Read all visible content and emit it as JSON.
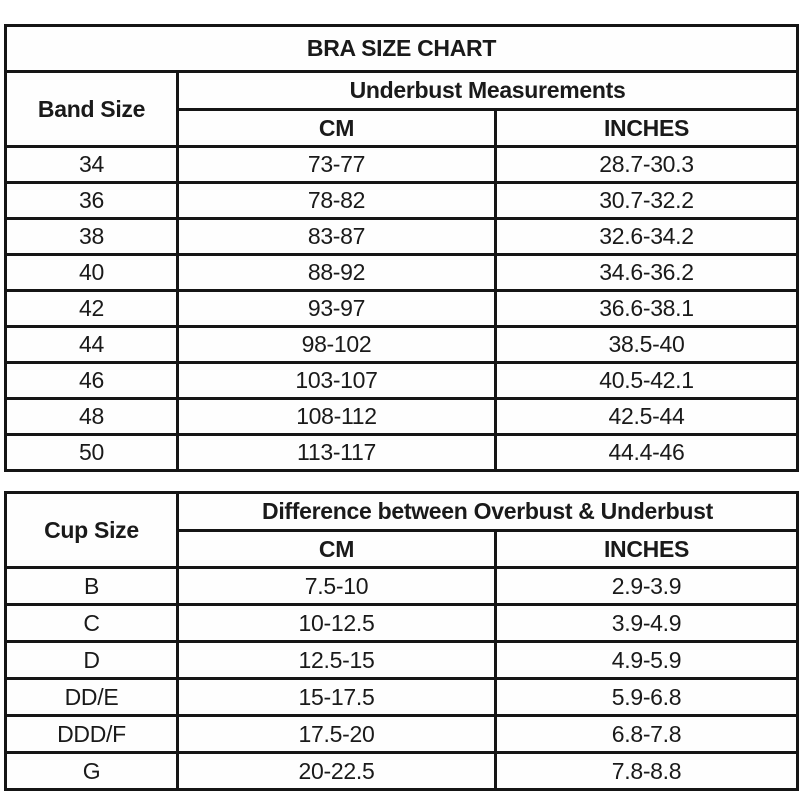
{
  "colors": {
    "header_background": "#FAF7D8",
    "cell_background": "#FFFFFF",
    "border": "#151515",
    "text": "#1A1A1A"
  },
  "chart_data": [
    {
      "type": "table",
      "title": "BRA SIZE CHART",
      "corner_header": "Band Size",
      "group_header": "Underbust Measurements",
      "columns": [
        "CM",
        "INCHES"
      ],
      "rows": [
        [
          "34",
          "73-77",
          "28.7-30.3"
        ],
        [
          "36",
          "78-82",
          "30.7-32.2"
        ],
        [
          "38",
          "83-87",
          "32.6-34.2"
        ],
        [
          "40",
          "88-92",
          "34.6-36.2"
        ],
        [
          "42",
          "93-97",
          "36.6-38.1"
        ],
        [
          "44",
          "98-102",
          "38.5-40"
        ],
        [
          "46",
          "103-107",
          "40.5-42.1"
        ],
        [
          "48",
          "108-112",
          "42.5-44"
        ],
        [
          "50",
          "113-117",
          "44.4-46"
        ]
      ]
    },
    {
      "type": "table",
      "title": "",
      "corner_header": "Cup Size",
      "group_header": "Difference between Overbust & Underbust",
      "columns": [
        "CM",
        "INCHES"
      ],
      "rows": [
        [
          "B",
          "7.5-10",
          "2.9-3.9"
        ],
        [
          "C",
          "10-12.5",
          "3.9-4.9"
        ],
        [
          "D",
          "12.5-15",
          "4.9-5.9"
        ],
        [
          "DD/E",
          "15-17.5",
          "5.9-6.8"
        ],
        [
          "DDD/F",
          "17.5-20",
          "6.8-7.8"
        ],
        [
          "G",
          "20-22.5",
          "7.8-8.8"
        ]
      ]
    }
  ]
}
